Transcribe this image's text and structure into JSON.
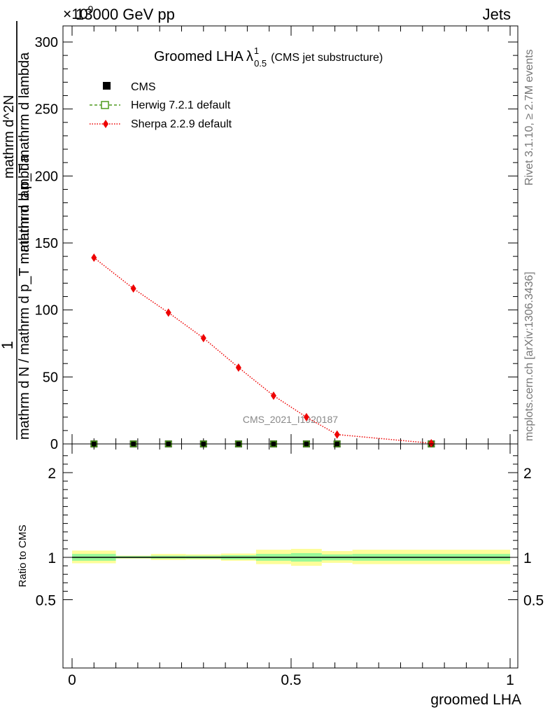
{
  "header": {
    "left": "13000 GeV pp",
    "right": "Jets",
    "exponent": "×10",
    "exponent_power": "9"
  },
  "side_text": {
    "rivet": "Rivet 3.1.10, ≥ 2.7M events",
    "mcplots": "mcplots.cern.ch [arXiv:1306.3436]"
  },
  "watermark": "CMS_2021_I1920187",
  "chart_data": [
    {
      "type": "line",
      "title_main": "Groomed LHA",
      "title_lambda": "λ",
      "title_sup": "1",
      "title_sub": "0.5",
      "title_extra": "(CMS jet substructure)",
      "ylabel_num1": "1",
      "ylabel_den1": "mathrm d N / mathrm d p_T mathrm d lambda",
      "ylabel_num2": "mathrm d^2N",
      "ylabel_den2": "mathrm d p_T mathrm d lambda",
      "xlim": [
        0,
        1
      ],
      "ylim": [
        0,
        315
      ],
      "yticks": [
        0,
        50,
        100,
        150,
        200,
        250,
        300
      ],
      "yticklabels": [
        "0",
        "50",
        "100",
        "150",
        "200",
        "250",
        "300"
      ],
      "legend_position": "top-left",
      "series": [
        {
          "name": "CMS",
          "color": "#000000",
          "marker": "square",
          "x": [
            0.05,
            0.14,
            0.22,
            0.3,
            0.38,
            0.46,
            0.535,
            0.605,
            0.82
          ],
          "y": [
            0,
            0,
            0,
            0,
            0,
            0,
            0,
            0,
            0
          ]
        },
        {
          "name": "Herwig 7.2.1 default",
          "color": "#4f9a1e",
          "marker": "open-square",
          "x": [
            0.05,
            0.14,
            0.22,
            0.3,
            0.38,
            0.46,
            0.535,
            0.605,
            0.82
          ],
          "y": [
            0,
            0,
            0,
            0,
            0,
            0,
            0,
            0,
            0
          ]
        },
        {
          "name": "Sherpa 2.2.9 default",
          "color": "#ee0000",
          "marker": "diamond",
          "x": [
            0.05,
            0.14,
            0.22,
            0.3,
            0.38,
            0.46,
            0.535,
            0.605,
            0.82
          ],
          "y": [
            139,
            116,
            98,
            79,
            57,
            36,
            20,
            7,
            0.5
          ]
        }
      ]
    },
    {
      "type": "area",
      "ylabel": "Ratio to CMS",
      "xlabel": "groomed LHA",
      "xlim": [
        0,
        1
      ],
      "ylim": [
        0.38,
        2.3
      ],
      "yticks": [
        0.5,
        1,
        2
      ],
      "yticklabels": [
        "0.5",
        "1",
        "2"
      ],
      "xticks": [
        0,
        0.5,
        1
      ],
      "xticklabels": [
        "0",
        "0.5",
        "1"
      ],
      "bands": {
        "bin_edges": [
          0,
          0.1,
          0.18,
          0.26,
          0.34,
          0.42,
          0.5,
          0.57,
          0.64,
          1.0
        ],
        "inner_low": [
          0.96,
          0.99,
          0.985,
          0.985,
          0.975,
          0.96,
          0.95,
          0.965,
          0.96
        ],
        "inner_high": [
          1.04,
          1.015,
          1.02,
          1.02,
          1.025,
          1.04,
          1.05,
          1.035,
          1.04
        ],
        "outer_low": [
          0.93,
          0.985,
          0.97,
          0.975,
          0.96,
          0.92,
          0.9,
          0.935,
          0.92
        ],
        "outer_high": [
          1.08,
          1.02,
          1.04,
          1.035,
          1.045,
          1.09,
          1.1,
          1.075,
          1.09
        ],
        "inner_color": "#98f898",
        "outer_color": "#fdfd99"
      },
      "reference": 1
    }
  ]
}
